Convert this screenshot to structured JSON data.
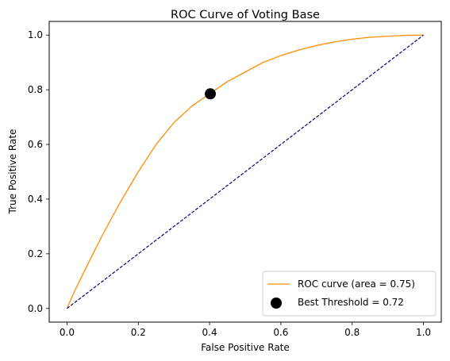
{
  "chart_data": {
    "type": "line",
    "title": "ROC Curve of Voting Base",
    "xlabel": "False Positive Rate",
    "ylabel": "True Positive Rate",
    "xlim": [
      -0.05,
      1.05
    ],
    "ylim": [
      -0.05,
      1.05
    ],
    "xticks": [
      0.0,
      0.2,
      0.4,
      0.6,
      0.8,
      1.0
    ],
    "yticks": [
      0.0,
      0.2,
      0.4,
      0.6,
      0.8,
      1.0
    ],
    "xtick_labels": [
      "0.0",
      "0.2",
      "0.4",
      "0.6",
      "0.8",
      "1.0"
    ],
    "ytick_labels": [
      "0.0",
      "0.2",
      "0.4",
      "0.6",
      "0.8",
      "1.0"
    ],
    "grid": false,
    "legend_position": "lower-right",
    "series": [
      {
        "name": "ROC curve (area = 0.75)",
        "kind": "line",
        "color": "#ff8c00",
        "x": [
          0.0,
          0.02,
          0.05,
          0.1,
          0.15,
          0.2,
          0.25,
          0.3,
          0.35,
          0.4,
          0.45,
          0.5,
          0.55,
          0.6,
          0.65,
          0.7,
          0.75,
          0.8,
          0.85,
          0.9,
          0.95,
          1.0
        ],
        "y": [
          0.0,
          0.06,
          0.14,
          0.27,
          0.39,
          0.5,
          0.6,
          0.68,
          0.74,
          0.785,
          0.83,
          0.865,
          0.9,
          0.925,
          0.945,
          0.962,
          0.975,
          0.985,
          0.992,
          0.996,
          0.999,
          1.0
        ]
      },
      {
        "name": "",
        "kind": "dashed-line",
        "color": "#000080",
        "x": [
          0.0,
          1.0
        ],
        "y": [
          0.0,
          1.0
        ]
      },
      {
        "name": "Best Threshold = 0.72",
        "kind": "point",
        "color": "#000000",
        "x": [
          0.402
        ],
        "y": [
          0.785
        ]
      }
    ]
  }
}
